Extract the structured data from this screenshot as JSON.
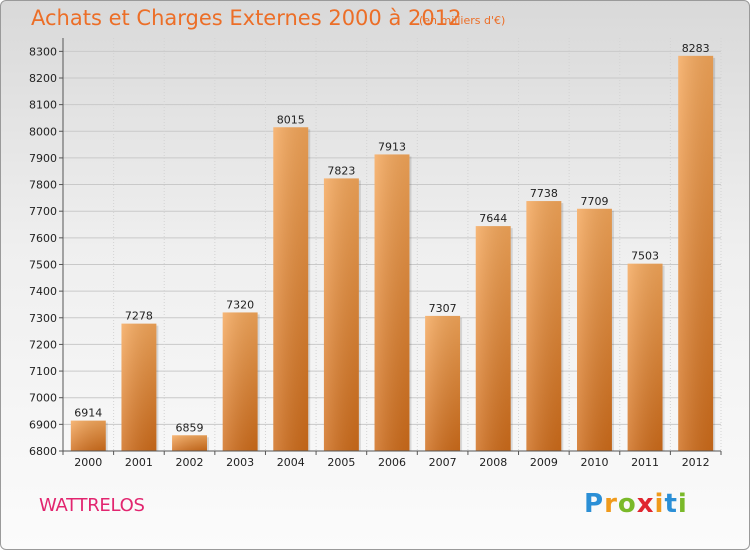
{
  "title": "Achats et Charges Externes 2000 à 2012",
  "subtitle": "(en milliers d'€)",
  "city": "WATTRELOS",
  "logo": {
    "letters": [
      "P",
      "r",
      "o",
      "x",
      "i",
      "t",
      "i"
    ],
    "colors": [
      "#2b8fd6",
      "#f09a1b",
      "#7ab929",
      "#e0262f",
      "#f09a1b",
      "#2b8fd6",
      "#7ab929"
    ]
  },
  "chart_data": {
    "type": "bar",
    "categories": [
      "2000",
      "2001",
      "2002",
      "2003",
      "2004",
      "2005",
      "2006",
      "2007",
      "2008",
      "2009",
      "2010",
      "2011",
      "2012"
    ],
    "values": [
      6914,
      7278,
      6859,
      7320,
      8015,
      7823,
      7913,
      7307,
      7644,
      7738,
      7709,
      7503,
      8283
    ],
    "ylim": [
      6800,
      8350
    ],
    "yticks": [
      6800,
      6900,
      7000,
      7100,
      7200,
      7300,
      7400,
      7500,
      7600,
      7700,
      7800,
      7900,
      8000,
      8100,
      8200,
      8300
    ],
    "grid": true,
    "bar_color": "#f0a04f",
    "bar_color_dark": "#d0701e"
  }
}
